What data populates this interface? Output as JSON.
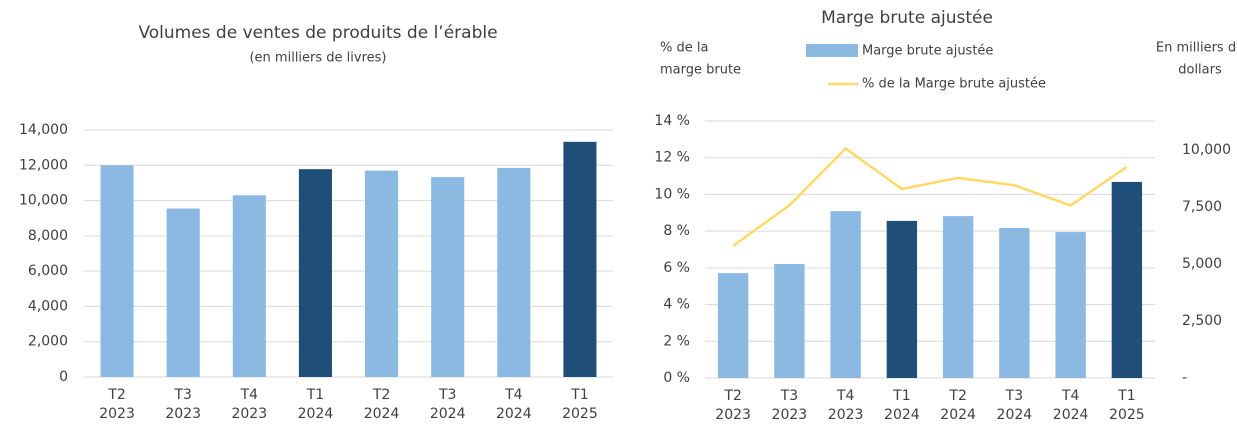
{
  "chart_data": [
    {
      "type": "bar",
      "title": "Volumes de ventes de produits de l’érable",
      "subtitle": "(en milliers de livres)",
      "categories": [
        [
          "T2",
          "2023"
        ],
        [
          "T3",
          "2023"
        ],
        [
          "T4",
          "2023"
        ],
        [
          "T1",
          "2024"
        ],
        [
          "T2",
          "2024"
        ],
        [
          "T3",
          "2024"
        ],
        [
          "T4",
          "2024"
        ],
        [
          "T1",
          "2025"
        ]
      ],
      "values": [
        12000,
        9550,
        10300,
        11780,
        11700,
        11330,
        11850,
        13330
      ],
      "colors": [
        "#8cb9e2",
        "#8cb9e2",
        "#8cb9e2",
        "#1f4e79",
        "#8cb9e2",
        "#8cb9e2",
        "#8cb9e2",
        "#1f4e79"
      ],
      "ylim": [
        0,
        14000
      ],
      "yticks": [
        0,
        {
          "value": 2000,
          "label": "2,000"
        },
        {
          "value": 4000,
          "label": "4,000"
        },
        {
          "value": 6000,
          "label": "6,000"
        },
        {
          "value": 8000,
          "label": "8,000"
        },
        {
          "value": 10000,
          "label": "10,000"
        },
        {
          "value": 12000,
          "label": "12,000"
        },
        {
          "value": 14000,
          "label": "14,000"
        }
      ],
      "grid": true
    },
    {
      "type": "bar_line",
      "title": "Marge brute ajustée",
      "y_label": [
        "% de la",
        "marge brute"
      ],
      "y2_label": [
        "En milliers de",
        "dollars"
      ],
      "categories": [
        [
          "T2",
          "2023"
        ],
        [
          "T3",
          "2023"
        ],
        [
          "T4",
          "2023"
        ],
        [
          "T1",
          "2024"
        ],
        [
          "T2",
          "2024"
        ],
        [
          "T3",
          "2024"
        ],
        [
          "T4",
          "2024"
        ],
        [
          "T1",
          "2025"
        ]
      ],
      "series": [
        {
          "name": "Marge brute ajustée",
          "type": "bar",
          "axis": "y2",
          "color": "#8cb9e2",
          "colors": [
            "#8cb9e2",
            "#8cb9e2",
            "#8cb9e2",
            "#1f4e79",
            "#8cb9e2",
            "#8cb9e2",
            "#8cb9e2",
            "#1f4e79"
          ],
          "values": [
            4600,
            5000,
            7320,
            6890,
            7100,
            6580,
            6400,
            8600
          ]
        },
        {
          "name": "% de la Marge brute ajustée",
          "type": "line",
          "axis": "y",
          "color": "#ffd966",
          "values": [
            7.2,
            9.4,
            12.5,
            10.3,
            10.9,
            10.5,
            9.4,
            11.5
          ]
        }
      ],
      "ylim": [
        0,
        14
      ],
      "yticks": [
        {
          "value": 0,
          "label": "0 %"
        },
        {
          "value": 2,
          "label": "2 %"
        },
        {
          "value": 4,
          "label": "4 %"
        },
        {
          "value": 6,
          "label": "6 %"
        },
        {
          "value": 8,
          "label": "8 %"
        },
        {
          "value": 10,
          "label": "10 %"
        },
        {
          "value": 12,
          "label": "12 %"
        },
        {
          "value": 14,
          "label": "14 %"
        }
      ],
      "y2lim": [
        0,
        10000
      ],
      "y2ticks": [
        {
          "value": 0,
          "label": "-"
        },
        {
          "value": 2500,
          "label": "2,500"
        },
        {
          "value": 5000,
          "label": "5,000"
        },
        {
          "value": 7500,
          "label": "7,500"
        },
        {
          "value": 10000,
          "label": "10,000"
        }
      ],
      "grid": true
    }
  ]
}
